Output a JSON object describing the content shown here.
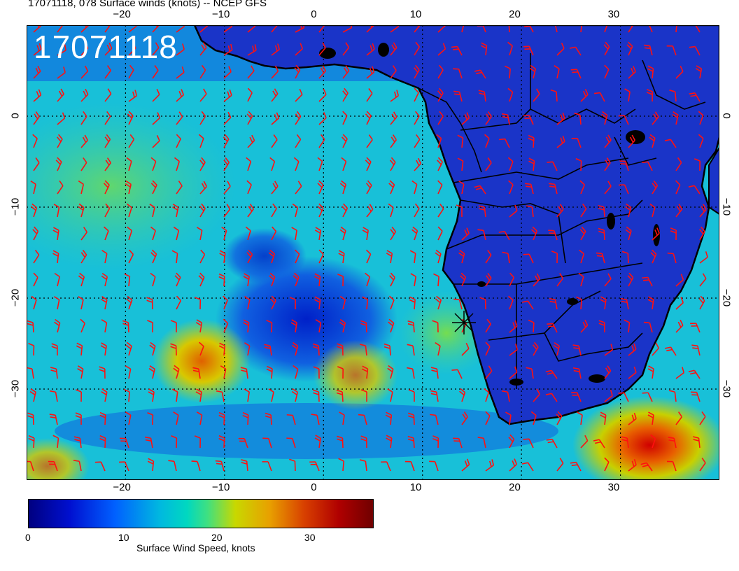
{
  "title": "17071118, 078 Surface winds (knots) -- NCEP GFS",
  "stamp": "17071118",
  "lon_labels": [
    "−20",
    "−10",
    "0",
    "10",
    "20",
    "30"
  ],
  "lon_values": [
    -20,
    -10,
    0,
    10,
    20,
    30
  ],
  "lat_labels": [
    "0",
    "−10",
    "−20",
    "−30"
  ],
  "lat_values": [
    0,
    -10,
    -20,
    -30
  ],
  "extent": {
    "lon_min": -30,
    "lon_max": 40,
    "lat_min": -40,
    "lat_max": 10
  },
  "colorbar": {
    "title": "Surface Wind Speed, knots",
    "tick_labels": [
      "0",
      "10",
      "20",
      "30"
    ],
    "tick_values": [
      0,
      10,
      20,
      30
    ],
    "max": 37
  },
  "colors": {
    "barbs": "#ff1010",
    "coast": "#000000",
    "land": "#1a2ec8",
    "ocean": "#00b8e0"
  }
}
